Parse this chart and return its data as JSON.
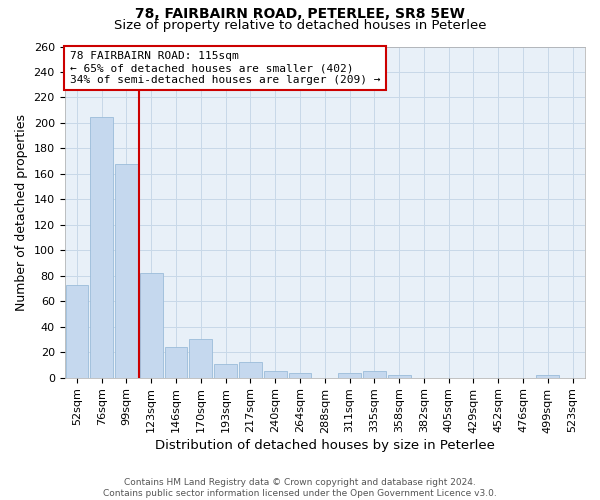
{
  "title": "78, FAIRBAIRN ROAD, PETERLEE, SR8 5EW",
  "subtitle": "Size of property relative to detached houses in Peterlee",
  "xlabel": "Distribution of detached houses by size in Peterlee",
  "ylabel": "Number of detached properties",
  "footer_line1": "Contains HM Land Registry data © Crown copyright and database right 2024.",
  "footer_line2": "Contains public sector information licensed under the Open Government Licence v3.0.",
  "bin_labels": [
    "52sqm",
    "76sqm",
    "99sqm",
    "123sqm",
    "146sqm",
    "170sqm",
    "193sqm",
    "217sqm",
    "240sqm",
    "264sqm",
    "288sqm",
    "311sqm",
    "335sqm",
    "358sqm",
    "382sqm",
    "405sqm",
    "429sqm",
    "452sqm",
    "476sqm",
    "499sqm",
    "523sqm"
  ],
  "bar_values": [
    73,
    205,
    168,
    82,
    24,
    30,
    11,
    12,
    5,
    4,
    0,
    4,
    5,
    2,
    0,
    0,
    0,
    0,
    0,
    2,
    0
  ],
  "bar_color": "#c5d8ee",
  "bar_edgecolor": "#9bbcda",
  "vline_x_index": 2.5,
  "vline_color": "#cc0000",
  "annotation_text": "78 FAIRBAIRN ROAD: 115sqm\n← 65% of detached houses are smaller (402)\n34% of semi-detached houses are larger (209) →",
  "annotation_box_color": "#ffffff",
  "annotation_box_edgecolor": "#cc0000",
  "ylim": [
    0,
    260
  ],
  "yticks": [
    0,
    20,
    40,
    60,
    80,
    100,
    120,
    140,
    160,
    180,
    200,
    220,
    240,
    260
  ],
  "background_color": "#ffffff",
  "plot_bg_color": "#e8f0f8",
  "grid_color": "#c8d8e8",
  "title_fontsize": 10,
  "subtitle_fontsize": 9.5,
  "axis_label_fontsize": 9,
  "tick_fontsize": 8,
  "footer_fontsize": 6.5
}
